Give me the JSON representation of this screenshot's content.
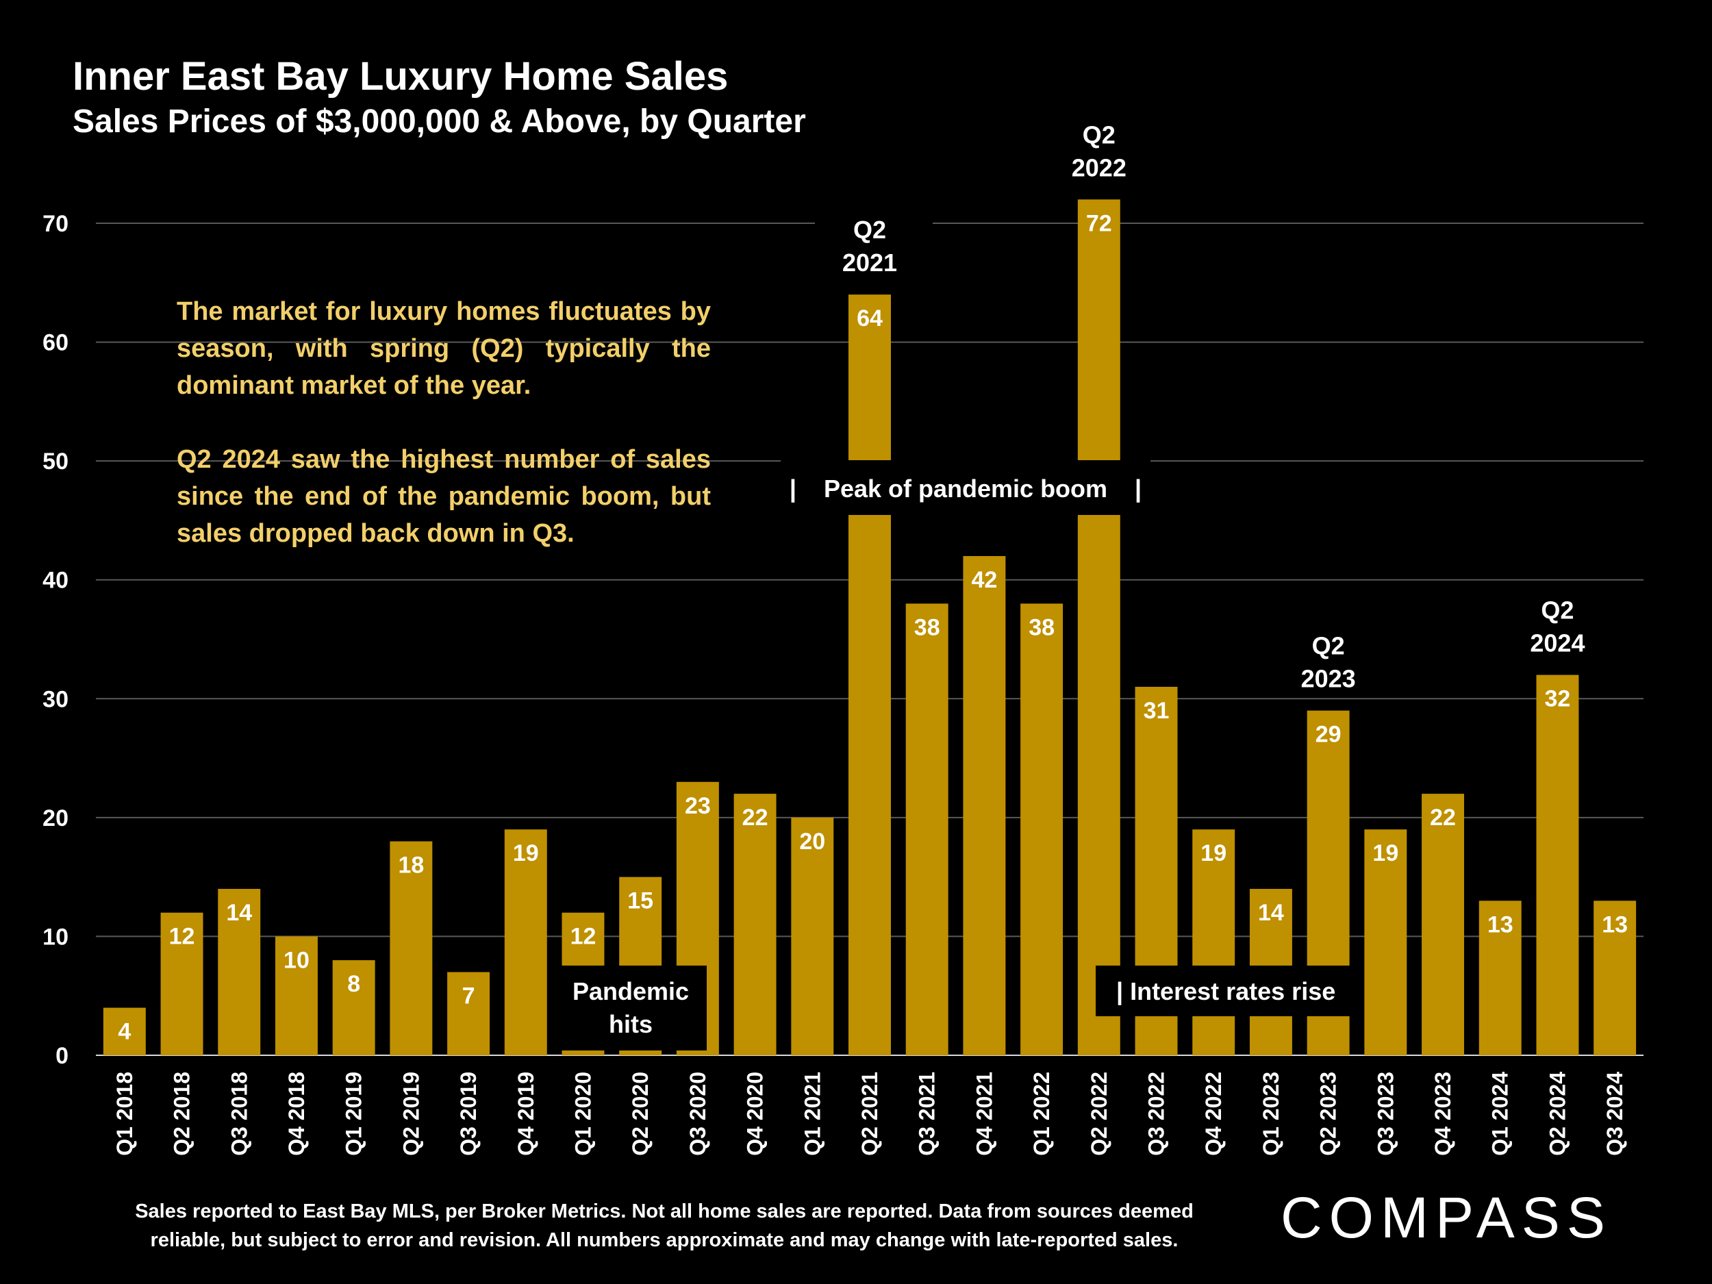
{
  "colors": {
    "background": "#000000",
    "bar": "#bf9000",
    "grid": "#595959",
    "commentary": "#f2cf6a",
    "label": "#ffffff"
  },
  "chart_data": {
    "type": "bar",
    "title": "Inner East Bay Luxury Home Sales",
    "subtitle": "Sales Prices of $3,000,000 & Above, by Quarter",
    "categories": [
      "Q1 2018",
      "Q2 2018",
      "Q3 2018",
      "Q4 2018",
      "Q1 2019",
      "Q2 2019",
      "Q3 2019",
      "Q4 2019",
      "Q1 2020",
      "Q2 2020",
      "Q3 2020",
      "Q4 2020",
      "Q1 2021",
      "Q2 2021",
      "Q3 2021",
      "Q4 2021",
      "Q1 2022",
      "Q2 2022",
      "Q3 2022",
      "Q4 2022",
      "Q1 2023",
      "Q2 2023",
      "Q3 2023",
      "Q4 2023",
      "Q1 2024",
      "Q2 2024",
      "Q3 2024"
    ],
    "values": [
      4,
      12,
      14,
      10,
      8,
      18,
      7,
      19,
      12,
      15,
      23,
      22,
      20,
      64,
      38,
      42,
      38,
      72,
      31,
      19,
      14,
      29,
      19,
      22,
      13,
      32,
      13
    ],
    "ylim": [
      0,
      70
    ],
    "yticks": [
      0,
      10,
      20,
      30,
      40,
      50,
      60,
      70
    ],
    "grid": true,
    "data_labels": true,
    "callouts": [
      {
        "category": "Q2 2021",
        "line1": "Q2",
        "line2": "2021"
      },
      {
        "category": "Q2 2022",
        "line1": "Q2",
        "line2": "2022"
      },
      {
        "category": "Q2 2023",
        "line1": "Q2",
        "line2": "2023"
      },
      {
        "category": "Q2 2024",
        "line1": "Q2",
        "line2": "2024"
      }
    ],
    "annotations": [
      {
        "text_lines": [
          "Pandemic",
          "hits"
        ]
      },
      {
        "text": "|    Peak of pandemic boom    |"
      },
      {
        "text": "| Interest rates rise"
      }
    ]
  },
  "commentary": [
    "The market for luxury homes fluctuates by season, with spring (Q2) typically the dominant market of the year.",
    "Q2 2024 saw the highest number of sales since the end of the pandemic boom, but sales dropped back down in Q3."
  ],
  "footnote": "Sales reported to East Bay MLS, per Broker Metrics. Not all home sales are reported. Data from sources deemed reliable, but subject to error and revision. All numbers approximate and may change with late-reported sales.",
  "logo": "COMPASS"
}
